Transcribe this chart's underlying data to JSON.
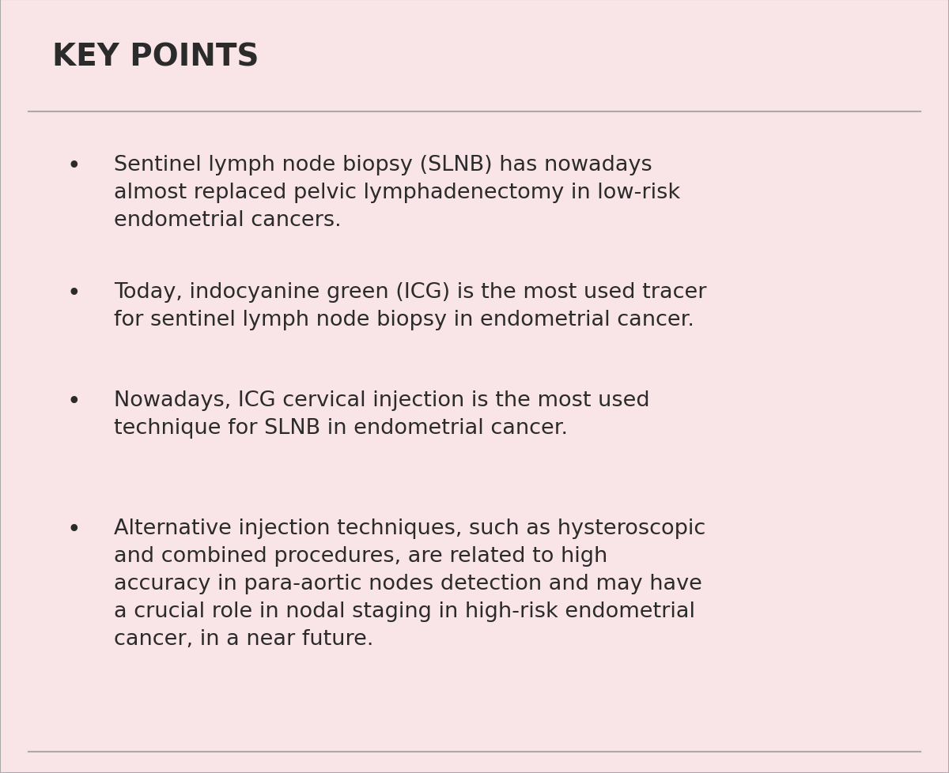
{
  "background_color": "#f9e4e8",
  "outer_bg_color": "#ffffff",
  "title": "KEY POINTS",
  "title_fontsize": 28,
  "title_fontweight": "bold",
  "text_color": "#2b2b2b",
  "body_fontsize": 19.5,
  "line_color": "#aaaaaa",
  "bullet_points": [
    "Sentinel lymph node biopsy (SLNB) has nowadays\nalmost replaced pelvic lymphadenectomy in low-risk\nendometrial cancers.",
    "Today, indocyanine green (ICG) is the most used tracer\nfor sentinel lymph node biopsy in endometrial cancer.",
    "Nowadays, ICG cervical injection is the most used\ntechnique for SLNB in endometrial cancer.",
    "Alternative injection techniques, such as hysteroscopic\nand combined procedures, are related to high\naccuracy in para-aortic nodes detection and may have\na crucial role in nodal staging in high-risk endometrial\ncancer, in a near future."
  ],
  "figwidth": 12.0,
  "figheight": 9.79
}
